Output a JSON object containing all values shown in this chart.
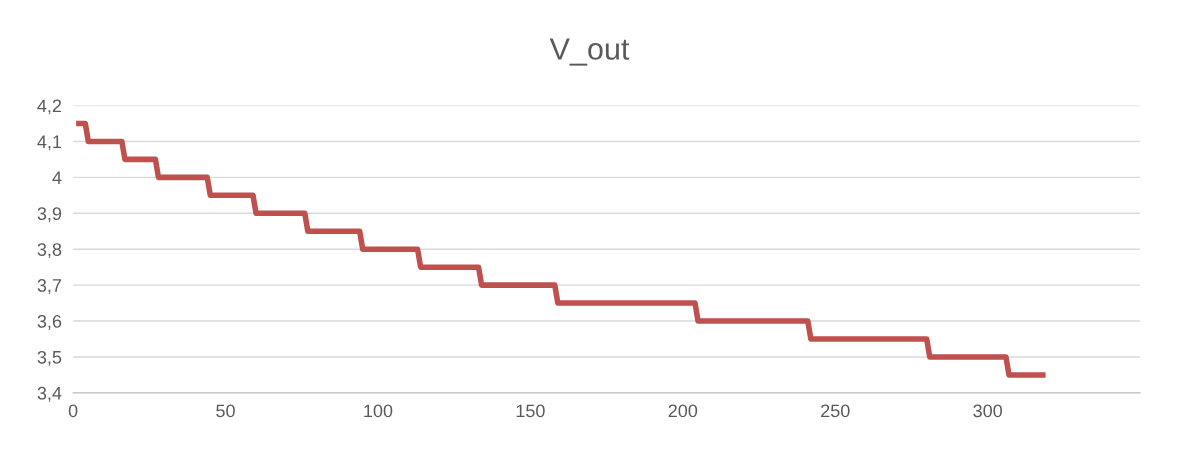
{
  "chart_data": {
    "type": "line",
    "title": "V_out",
    "x": [
      1,
      4,
      5,
      16,
      17,
      27,
      28,
      44,
      45,
      59,
      60,
      76,
      77,
      94,
      95,
      113,
      114,
      133,
      134,
      158,
      159,
      204,
      205,
      241,
      242,
      280,
      281,
      306,
      307,
      319
    ],
    "series": [
      {
        "color": "#c0504d",
        "values": [
          4.15,
          4.15,
          4.1,
          4.1,
          4.05,
          4.05,
          4.0,
          4.0,
          3.95,
          3.95,
          3.9,
          3.9,
          3.85,
          3.85,
          3.8,
          3.8,
          3.75,
          3.75,
          3.7,
          3.7,
          3.65,
          3.65,
          3.6,
          3.6,
          3.55,
          3.55,
          3.5,
          3.5,
          3.45,
          3.45
        ]
      }
    ],
    "xlim": [
      0,
      350
    ],
    "xticks": [
      0,
      50,
      100,
      150,
      200,
      250,
      300
    ],
    "ylim": [
      3.4,
      4.2
    ],
    "yticks": [
      {
        "value": 3.4,
        "label": "3,4"
      },
      {
        "value": 3.5,
        "label": "3,5"
      },
      {
        "value": 3.6,
        "label": "3,6"
      },
      {
        "value": 3.7,
        "label": "3,7"
      },
      {
        "value": 3.8,
        "label": "3,8"
      },
      {
        "value": 3.9,
        "label": "3,9"
      },
      {
        "value": 4,
        "label": "4"
      },
      {
        "value": 4.1,
        "label": "4,1"
      },
      {
        "value": 4.2,
        "label": "4,2"
      }
    ],
    "grid": "y",
    "legend": false,
    "marker": "none",
    "line_style": "solid"
  }
}
